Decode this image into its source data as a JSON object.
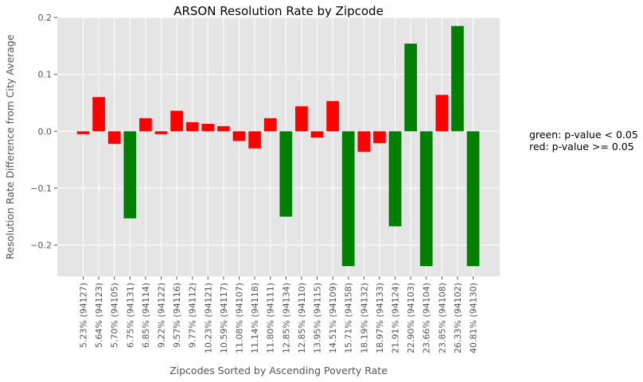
{
  "chart_data": {
    "type": "bar",
    "title": "ARSON Resolution Rate by Zipcode",
    "xlabel": "Zipcodes Sorted by Ascending Poverty Rate",
    "ylabel": "Resolution Rate Difference from City Average",
    "ylim": [
      -0.255,
      0.2
    ],
    "yticks": [
      0.2,
      0.1,
      0.0,
      -0.1,
      -0.2
    ],
    "ytick_labels": [
      "0.2",
      "0.1",
      "0.0",
      "−0.1",
      "−0.2"
    ],
    "grid": true,
    "colors": {
      "significant": "#008000",
      "not_significant": "#ff0000",
      "background": "#e5e5e5",
      "grid": "#ffffff"
    },
    "categories": [
      "5.23% (94127)",
      "5.64% (94123)",
      "5.70% (94105)",
      "6.75% (94131)",
      "6.85% (94114)",
      "9.22% (94122)",
      "9.57% (94116)",
      "9.77% (94112)",
      "10.23% (94121)",
      "10.59% (94117)",
      "11.08% (94107)",
      "11.14% (94118)",
      "11.80% (94111)",
      "12.85% (94134)",
      "12.85% (94110)",
      "13.95% (94115)",
      "14.51% (94109)",
      "15.71% (94158)",
      "18.19% (94132)",
      "18.97% (94133)",
      "21.91% (94124)",
      "22.90% (94103)",
      "23.66% (94104)",
      "23.85% (94108)",
      "26.33% (94102)",
      "40.81% (94130)"
    ],
    "values": [
      -0.005,
      0.06,
      -0.022,
      -0.153,
      0.023,
      -0.005,
      0.036,
      0.016,
      0.013,
      0.009,
      -0.017,
      -0.03,
      0.023,
      -0.15,
      0.044,
      -0.011,
      0.053,
      -0.237,
      -0.036,
      -0.021,
      -0.167,
      0.154,
      -0.237,
      0.064,
      0.185,
      -0.237
    ],
    "significant": [
      false,
      false,
      false,
      true,
      false,
      false,
      false,
      false,
      false,
      false,
      false,
      false,
      false,
      true,
      false,
      false,
      false,
      true,
      false,
      false,
      true,
      true,
      true,
      false,
      true,
      true
    ],
    "legend_note": [
      "green: p-value < 0.05",
      "red: p-value >= 0.05"
    ]
  }
}
